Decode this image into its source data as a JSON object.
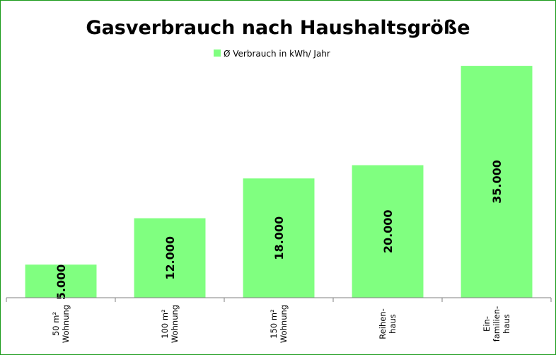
{
  "chart_data": {
    "type": "bar",
    "title": "Gasverbrauch nach Haushaltsgröße",
    "categories": [
      [
        "50 m²",
        "Wohnung"
      ],
      [
        "100 m²",
        "Wohnung"
      ],
      [
        "150 m²",
        "Wohnung"
      ],
      [
        "Reihen-",
        "haus"
      ],
      [
        "Ein-",
        "familien-",
        "haus"
      ]
    ],
    "series": [
      {
        "name": "Ø Verbrauch in kWh/ Jahr",
        "values": [
          5000,
          12000,
          18000,
          20000,
          35000
        ],
        "labels": [
          "5.000",
          "12.000",
          "18.000",
          "20.000",
          "35.000"
        ]
      }
    ],
    "ylim": [
      0,
      36500
    ],
    "grid": false,
    "legend": "top",
    "colors": {
      "bar": "#80ff80",
      "frame": "#1a9a1a",
      "axis": "#808080"
    }
  }
}
